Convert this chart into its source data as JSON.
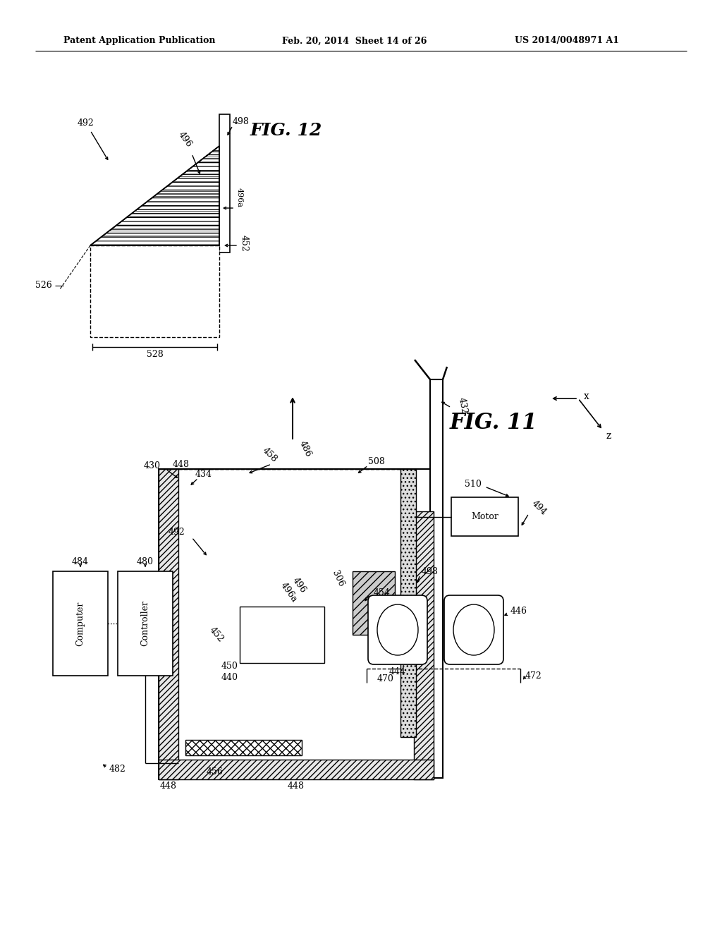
{
  "header_left": "Patent Application Publication",
  "header_mid": "Feb. 20, 2014  Sheet 14 of 26",
  "header_right": "US 2014/0048971 A1",
  "fig12_label": "FIG. 12",
  "fig11_label": "FIG. 11",
  "bg_color": "#ffffff"
}
